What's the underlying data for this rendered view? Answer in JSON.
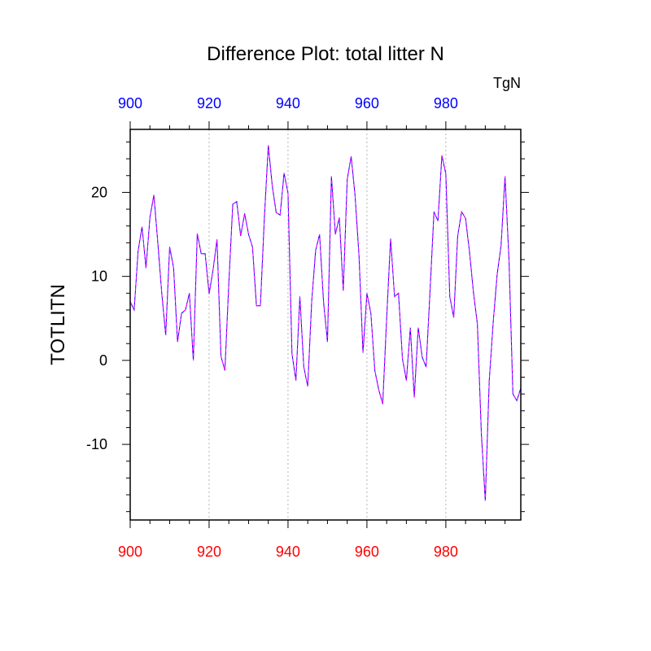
{
  "chart_data": {
    "type": "line",
    "title": "Difference Plot: total litter N",
    "units": "TgN",
    "ylabel": "TOTLITN",
    "xlabel": "",
    "xlim": [
      900,
      999
    ],
    "ylim": [
      -19,
      27.5
    ],
    "x_ticks": [
      900,
      920,
      940,
      960,
      980
    ],
    "y_ticks": [
      -10,
      0,
      10,
      20
    ],
    "x_tick_labels": [
      "900",
      "920",
      "940",
      "960",
      "980"
    ],
    "y_tick_labels": [
      "-10",
      "0",
      "10",
      "20"
    ],
    "grid": "vertical dotted lines at major x ticks",
    "colors": {
      "bottom_axis_labels": "#ff0000",
      "top_axis_labels": "#0000ff",
      "series_a": "#0000ff",
      "series_b": "#ff00ff",
      "axis": "#000000",
      "grid": "#b4b4b4"
    },
    "x": [
      900,
      901,
      902,
      903,
      904,
      905,
      906,
      907,
      908,
      909,
      910,
      911,
      912,
      913,
      914,
      915,
      916,
      917,
      918,
      919,
      920,
      921,
      922,
      923,
      924,
      925,
      926,
      927,
      928,
      929,
      930,
      931,
      932,
      933,
      934,
      935,
      936,
      937,
      938,
      939,
      940,
      941,
      942,
      943,
      944,
      945,
      946,
      947,
      948,
      949,
      950,
      951,
      952,
      953,
      954,
      955,
      956,
      957,
      958,
      959,
      960,
      961,
      962,
      963,
      964,
      965,
      966,
      967,
      968,
      969,
      970,
      971,
      972,
      973,
      974,
      975,
      976,
      977,
      978,
      979,
      980,
      981,
      982,
      983,
      984,
      985,
      986,
      987,
      988,
      989,
      990,
      991,
      992,
      993,
      994,
      995,
      996,
      997,
      998,
      999
    ],
    "series": [
      {
        "values": [
          7.0,
          6.0,
          13.0,
          15.9,
          11.0,
          17.0,
          19.7,
          14.0,
          8.0,
          3.0,
          13.5,
          11.0,
          2.2,
          5.6,
          6.0,
          8.0,
          0.0,
          15.1,
          12.7,
          12.7,
          7.9,
          10.8,
          14.4,
          0.5,
          -1.2,
          9.2,
          18.6,
          18.9,
          14.8,
          17.5,
          15.0,
          13.5,
          6.5,
          6.5,
          16.9,
          25.6,
          20.8,
          17.6,
          17.3,
          22.3,
          19.9,
          0.8,
          -2.4,
          7.6,
          -0.8,
          -3.1,
          7.0,
          13.1,
          15.0,
          7.0,
          2.2,
          21.9,
          15.0,
          17.0,
          8.3,
          21.5,
          24.3,
          19.6,
          12.4,
          0.9,
          8.0,
          5.6,
          -1.2,
          -3.5,
          -5.2,
          5.0,
          14.5,
          7.6,
          8.0,
          0.2,
          -2.4,
          3.9,
          -4.4,
          3.9,
          0.4,
          -0.8,
          8.3,
          17.7,
          16.6,
          24.4,
          22.2,
          7.6,
          5.1,
          14.8,
          17.7,
          16.9,
          12.9,
          8.1,
          4.3,
          -8.7,
          -16.7,
          -2.4,
          4.5,
          10.2,
          13.7,
          21.9,
          12.1,
          -4.0,
          -4.8,
          -3.3
        ]
      },
      {
        "values": [
          7.0,
          6.0,
          13.0,
          15.9,
          11.0,
          17.0,
          19.7,
          14.0,
          8.0,
          3.0,
          13.5,
          11.0,
          2.2,
          5.6,
          6.0,
          8.0,
          0.0,
          15.1,
          12.7,
          12.7,
          7.9,
          10.8,
          14.4,
          0.5,
          -1.2,
          9.2,
          18.6,
          18.9,
          14.8,
          17.5,
          15.0,
          13.5,
          6.5,
          6.5,
          16.9,
          25.6,
          20.8,
          17.6,
          17.3,
          22.3,
          19.9,
          0.8,
          -2.4,
          7.6,
          -0.8,
          -3.1,
          7.0,
          13.1,
          15.0,
          7.0,
          2.2,
          21.9,
          15.0,
          17.0,
          8.3,
          21.5,
          24.3,
          19.6,
          12.4,
          0.9,
          8.0,
          5.6,
          -1.2,
          -3.5,
          -5.2,
          5.0,
          14.5,
          7.6,
          8.0,
          0.2,
          -2.4,
          3.9,
          -4.4,
          3.9,
          0.4,
          -0.8,
          8.3,
          17.7,
          16.6,
          24.4,
          22.2,
          7.6,
          5.1,
          14.8,
          17.7,
          16.9,
          12.9,
          8.1,
          4.3,
          -8.7,
          -16.7,
          -2.4,
          4.5,
          10.2,
          13.7,
          21.9,
          12.1,
          -4.0,
          -4.8,
          -3.3
        ]
      }
    ]
  }
}
